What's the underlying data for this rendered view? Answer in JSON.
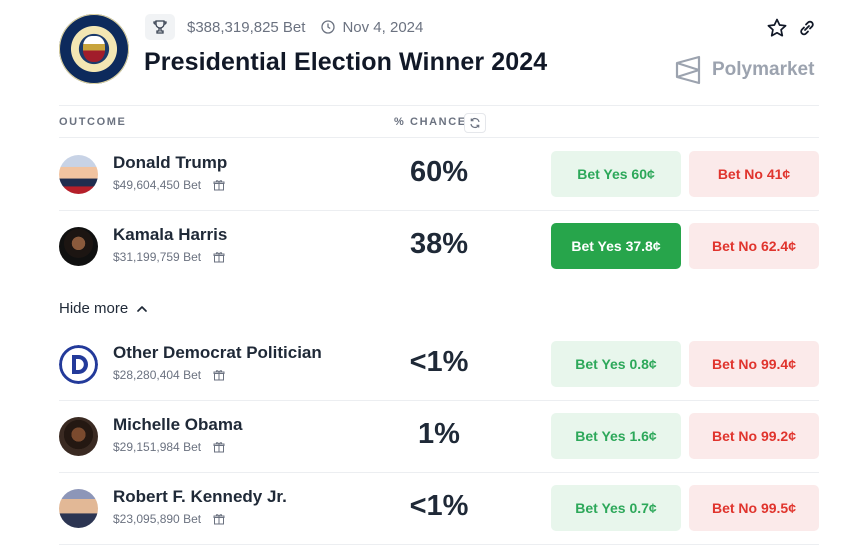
{
  "header": {
    "volume": "$388,319,825 Bet",
    "date": "Nov 4, 2024",
    "title": "Presidential Election Winner 2024",
    "brand": "Polymarket"
  },
  "columns": {
    "outcome": "OUTCOME",
    "chance": "% CHANCE"
  },
  "hide_more": "Hide more",
  "colors": {
    "yes_bg": "#e8f6ec",
    "yes_text": "#2da85a",
    "yes_active_bg": "#27a54b",
    "no_bg": "#fbeaea",
    "no_text": "#e0342d"
  },
  "outcomes": [
    {
      "name": "Donald Trump",
      "volume": "$49,604,450 Bet",
      "chance": "60%",
      "yes": "Bet Yes 60¢",
      "no": "Bet No 41¢"
    },
    {
      "name": "Kamala Harris",
      "volume": "$31,199,759 Bet",
      "chance": "38%",
      "yes": "Bet Yes 37.8¢",
      "no": "Bet No 62.4¢"
    },
    {
      "name": "Other Democrat Politician",
      "volume": "$28,280,404 Bet",
      "chance": "<1%",
      "yes": "Bet Yes 0.8¢",
      "no": "Bet No 99.4¢"
    },
    {
      "name": "Michelle Obama",
      "volume": "$29,151,984 Bet",
      "chance": "1%",
      "yes": "Bet Yes 1.6¢",
      "no": "Bet No 99.2¢"
    },
    {
      "name": "Robert F. Kennedy Jr.",
      "volume": "$23,095,890 Bet",
      "chance": "<1%",
      "yes": "Bet Yes 0.7¢",
      "no": "Bet No 99.5¢"
    }
  ]
}
